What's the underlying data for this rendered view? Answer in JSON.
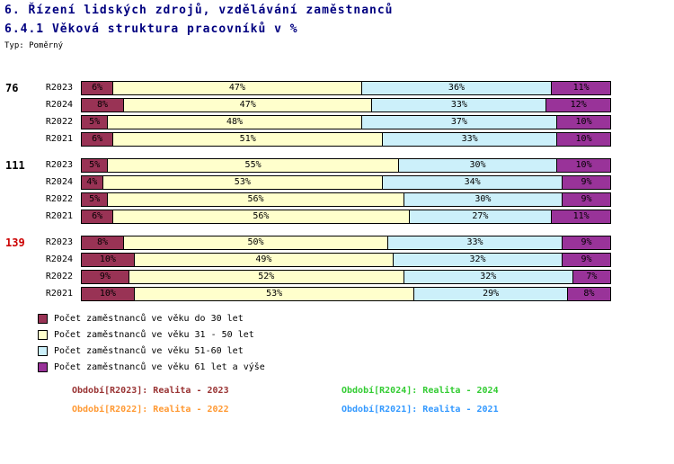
{
  "header": {
    "title": "6. Řízení lidských zdrojů, vzdělávání zaměstnanců",
    "subtitle": "6.4.1 Věková struktura pracovníků v %",
    "type_label": "Typ: Poměrný"
  },
  "colors": {
    "title_text": "#000080",
    "group_139_label": "#cc0000",
    "age_under_30": "#993355",
    "age_31_50": "#ffffcc",
    "age_51_60": "#ccf0fa",
    "age_61_plus": "#993399"
  },
  "chart_data": {
    "type": "bar",
    "orientation": "horizontal",
    "stacked": true,
    "xlim": [
      0,
      100
    ],
    "unit": "%",
    "series_colors": [
      "#993355",
      "#ffffcc",
      "#ccf0fa",
      "#993399"
    ],
    "legend": [
      "Počet zaměstnanců ve věku do 30 let",
      "Počet zaměstnanců ve věku 31 - 50 let",
      "Počet zaměstnanců ve věku 51-60 let",
      "Počet zaměstnanců ve věku 61 let a výše"
    ],
    "groups": [
      {
        "label": "76",
        "label_color": "#000000",
        "rows": [
          {
            "period": "R2023",
            "values": [
              6,
              47,
              36,
              11
            ]
          },
          {
            "period": "R2024",
            "values": [
              8,
              47,
              33,
              12
            ]
          },
          {
            "period": "R2022",
            "values": [
              5,
              48,
              37,
              10
            ]
          },
          {
            "period": "R2021",
            "values": [
              6,
              51,
              33,
              10
            ]
          }
        ]
      },
      {
        "label": "111",
        "label_color": "#000000",
        "rows": [
          {
            "period": "R2023",
            "values": [
              5,
              55,
              30,
              10
            ]
          },
          {
            "period": "R2024",
            "values": [
              4,
              53,
              34,
              9
            ]
          },
          {
            "period": "R2022",
            "values": [
              5,
              56,
              30,
              9
            ]
          },
          {
            "period": "R2021",
            "values": [
              6,
              56,
              27,
              11
            ]
          }
        ]
      },
      {
        "label": "139",
        "label_color": "#cc0000",
        "rows": [
          {
            "period": "R2023",
            "values": [
              8,
              50,
              33,
              9
            ]
          },
          {
            "period": "R2024",
            "values": [
              10,
              49,
              32,
              9
            ]
          },
          {
            "period": "R2022",
            "values": [
              9,
              52,
              32,
              7
            ]
          },
          {
            "period": "R2021",
            "values": [
              10,
              53,
              29,
              8
            ]
          }
        ]
      }
    ]
  },
  "periods": [
    {
      "label": "Období[R2023]: Realita - 2023",
      "color": "#993333"
    },
    {
      "label": "Období[R2024]: Realita - 2024",
      "color": "#33cc33"
    },
    {
      "label": "Období[R2022]: Realita - 2022",
      "color": "#ff9933"
    },
    {
      "label": "Období[R2021]: Realita - 2021",
      "color": "#3399ff"
    }
  ]
}
